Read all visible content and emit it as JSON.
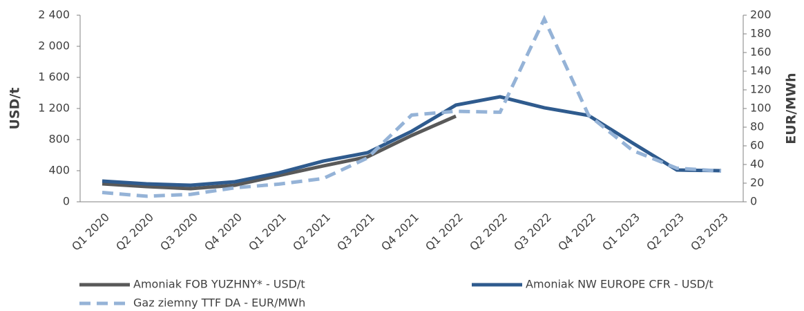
{
  "chart_data": {
    "type": "line",
    "y_label": "USD/t",
    "y2_label": "EUR/MWh",
    "categories": [
      "Q1 2020",
      "Q2 2020",
      "Q3 2020",
      "Q4 2020",
      "Q1 2021",
      "Q2 2021",
      "Q3 2021",
      "Q4 2021",
      "Q1 2022",
      "Q2 2022",
      "Q3 2022",
      "Q4 2022",
      "Q1 2023",
      "Q2 2023",
      "Q3 2023"
    ],
    "ylim": [
      0,
      2400
    ],
    "yticks": [
      0,
      400,
      800,
      {
        "value": 1200,
        "label": "1 200"
      },
      {
        "value": 1600,
        "label": "1 600"
      },
      {
        "value": 2000,
        "label": "2 000"
      },
      {
        "value": 2400,
        "label": "2 400"
      }
    ],
    "y2lim": [
      0,
      200
    ],
    "y2ticks": [
      0,
      20,
      40,
      60,
      80,
      100,
      120,
      140,
      160,
      180,
      200
    ],
    "grid": false,
    "legend": "bottom",
    "series": [
      {
        "name": "Amoniak FOB YUZHNY* - USD/t",
        "color": "#595959",
        "dash": false,
        "values": [
          231,
          196,
          169,
          213,
          338,
          462,
          578,
          853,
          1102,
          null,
          null,
          null,
          null,
          null,
          null
        ]
      },
      {
        "name": "Amoniak NW EUROPE CFR - USD/t",
        "color": "#2f5b8e",
        "dash": false,
        "values": [
          267,
          231,
          213,
          258,
          373,
          524,
          631,
          907,
          1244,
          1351,
          1209,
          1111,
          756,
          409,
          400
        ]
      },
      {
        "name": "Gaz ziemny TTF DA - EUR/MWh",
        "color": "#95b3d7",
        "dash": true,
        "axis": "y2",
        "values": [
          10,
          6,
          8,
          15,
          19,
          25,
          47,
          93,
          97,
          96,
          196,
          93,
          55,
          36,
          33
        ]
      }
    ]
  }
}
